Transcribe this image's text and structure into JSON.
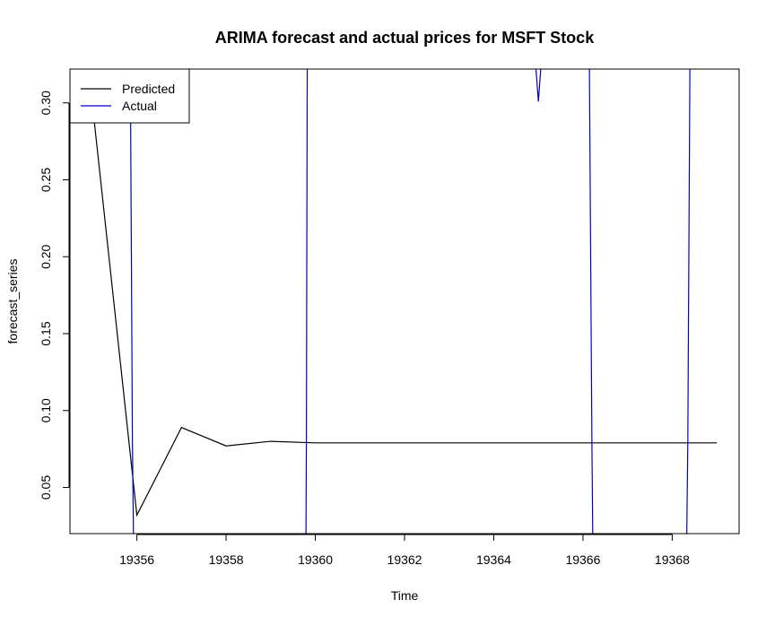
{
  "chart_data": {
    "type": "line",
    "title": "ARIMA forecast and actual prices for MSFT Stock",
    "xlabel": "Time",
    "ylabel": "forecast_series",
    "xlim": [
      19354.5,
      19369.5
    ],
    "ylim": [
      0.02,
      0.322
    ],
    "x_ticks": [
      19356,
      19358,
      19360,
      19362,
      19364,
      19366,
      19368
    ],
    "y_ticks": [
      0.05,
      0.1,
      0.15,
      0.2,
      0.25,
      0.3
    ],
    "x_tick_labels": [
      "19356",
      "19358",
      "19360",
      "19362",
      "19364",
      "19366",
      "19368"
    ],
    "y_tick_labels": [
      "0.05",
      "0.10",
      "0.15",
      "0.20",
      "0.25",
      "0.30"
    ],
    "grid": false,
    "legend_position": "top-left",
    "series": [
      {
        "name": "Predicted",
        "color": "#000000",
        "x": [
          19355,
          19356,
          19357,
          19358,
          19359,
          19360,
          19361,
          19362,
          19363,
          19364,
          19365,
          19366,
          19367,
          19368,
          19369
        ],
        "values": [
          0.3,
          0.032,
          0.089,
          0.077,
          0.08,
          0.079,
          0.079,
          0.079,
          0.079,
          0.079,
          0.079,
          0.079,
          0.079,
          0.079,
          0.079
        ]
      },
      {
        "name": "Actual",
        "color": "#0000cc",
        "x": [
          19355.85,
          19355.9,
          19355.95,
          19359.78,
          19359.8,
          19359.82,
          19364.9,
          19365.0,
          19365.1,
          19366.14,
          19366.2,
          19366.24,
          19368.3,
          19368.35,
          19368.4
        ],
        "values": [
          0.34,
          0.08,
          -0.05,
          -0.05,
          0.08,
          0.34,
          0.34,
          0.301,
          0.34,
          0.34,
          0.08,
          -0.05,
          -0.05,
          0.08,
          0.34
        ]
      }
    ]
  }
}
